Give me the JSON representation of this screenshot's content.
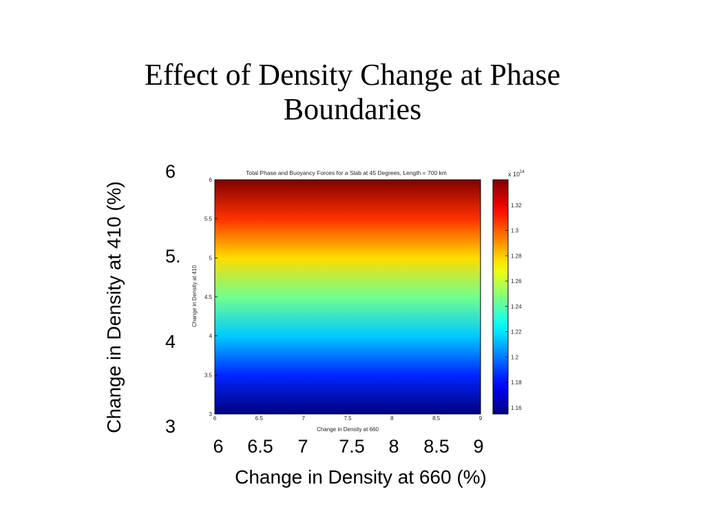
{
  "slide": {
    "title": "Effect of Density Change at Phase Boundaries"
  },
  "chart_data": {
    "type": "heatmap",
    "title": "Total Phase and Buoyancy Forces for a Slab at 45 Degrees, Length = 700 km",
    "xlabel": "Change in Density at 660",
    "ylabel": "Change in Density at 410",
    "outer_xlabel": "Change in Density at 660 (%)",
    "outer_ylabel": "Change in Density at 410 (%)",
    "xlim": [
      6,
      9
    ],
    "ylim": [
      3,
      6
    ],
    "x_ticks": [
      "6",
      "6.5",
      "7",
      "7.5",
      "8",
      "8.5",
      "9"
    ],
    "y_ticks": [
      "3",
      "3.5",
      "4",
      "4.5",
      "5",
      "5.5",
      "6"
    ],
    "outer_x_ticks": [
      "6",
      "6.5",
      "7",
      "7.5",
      "8",
      "8.5",
      "9"
    ],
    "outer_y_ticks": [
      "6",
      "5.",
      "4",
      "3"
    ],
    "colorbar": {
      "multiplier": "x 10^14",
      "multiplier_base": "x 10",
      "multiplier_exp": "14",
      "range": [
        1.155,
        1.34
      ],
      "ticks": [
        "1.32",
        "1.3",
        "1.28",
        "1.26",
        "1.24",
        "1.22",
        "1.2",
        "1.18",
        "1.16"
      ],
      "tick_values": [
        1.32,
        1.3,
        1.28,
        1.26,
        1.24,
        1.22,
        1.2,
        1.18,
        1.16
      ],
      "colormap": "jet"
    },
    "field": {
      "description_of_values": "force varies with change in density at 410 only",
      "y_values": [
        3.0,
        3.5,
        4.0,
        4.5,
        5.0,
        5.5,
        6.0
      ],
      "force_values": [
        1.155,
        1.185,
        1.215,
        1.245,
        1.277,
        1.308,
        1.34
      ]
    }
  }
}
